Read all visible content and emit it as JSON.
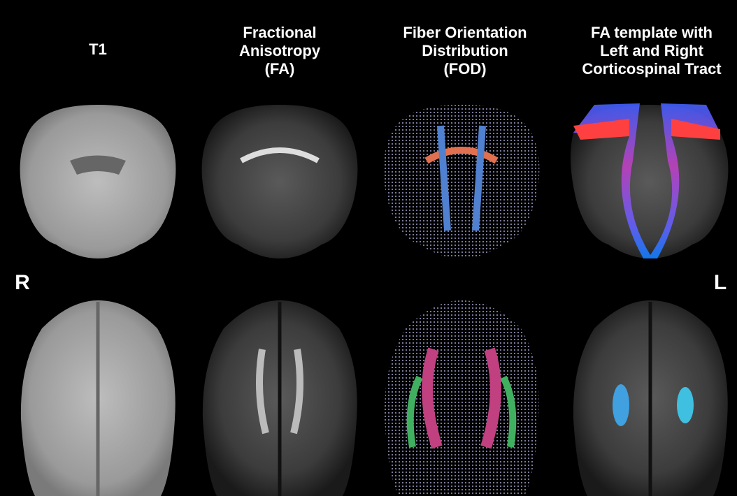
{
  "columns": [
    {
      "title_lines": [
        "T1"
      ]
    },
    {
      "title_lines": [
        "Fractional",
        "Anisotropy",
        "(FA)"
      ]
    },
    {
      "title_lines": [
        "Fiber Orientation",
        "Distribution",
        "(FOD)"
      ]
    },
    {
      "title_lines": [
        "FA template with",
        "Left and Right",
        "Corticospinal Tract"
      ]
    }
  ],
  "orientation": {
    "right": "R",
    "left": "L"
  }
}
